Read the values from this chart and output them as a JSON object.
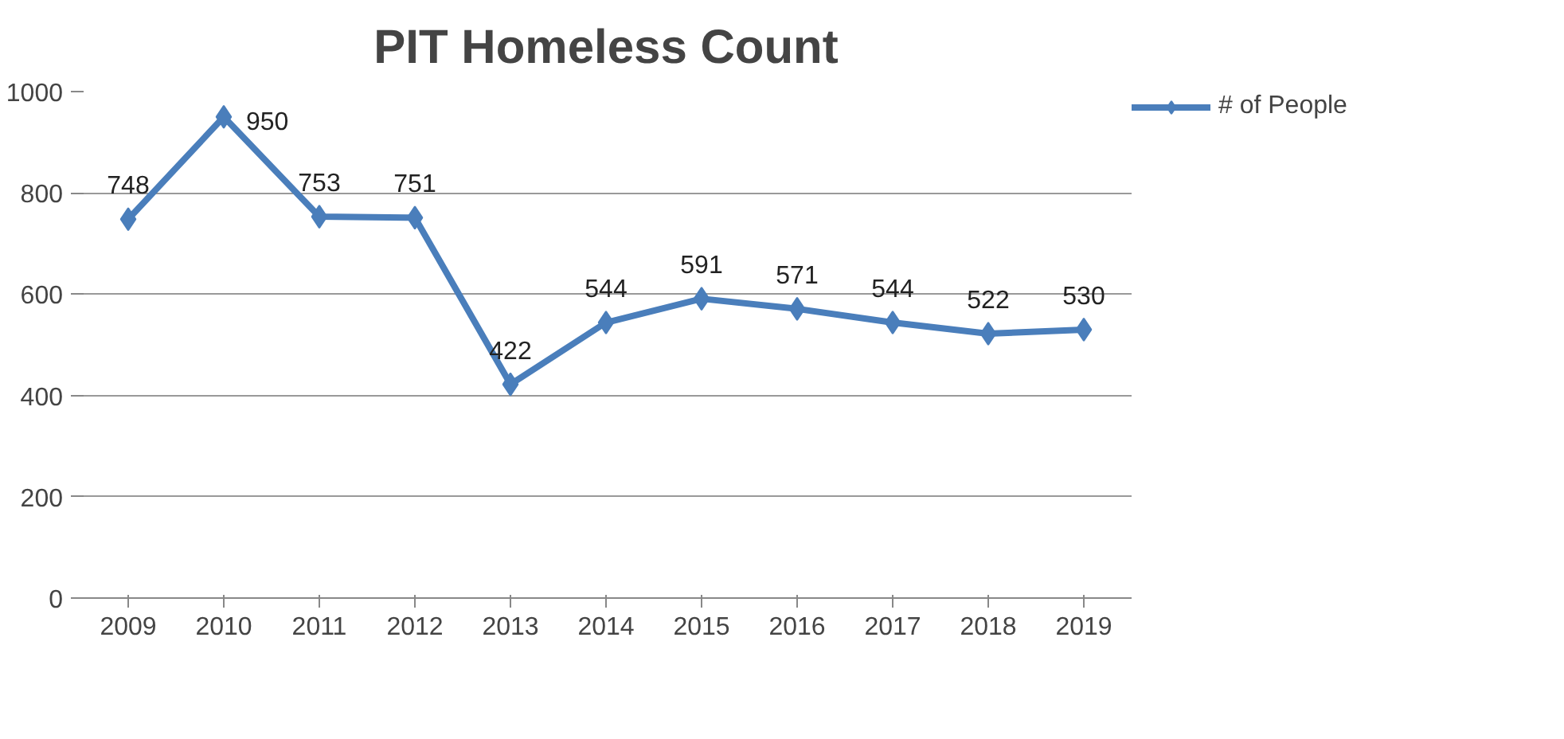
{
  "chart_data": {
    "type": "line",
    "title": "PIT Homeless Count",
    "categories": [
      "2009",
      "2010",
      "2011",
      "2012",
      "2013",
      "2014",
      "2015",
      "2016",
      "2017",
      "2018",
      "2019"
    ],
    "series": [
      {
        "name": "# of People",
        "color": "#4a7ebb",
        "values": [
          748,
          950,
          753,
          751,
          422,
          544,
          591,
          571,
          544,
          522,
          530
        ]
      }
    ],
    "ylim": [
      0,
      1000
    ],
    "yticks": [
      0,
      200,
      400,
      600,
      800,
      1000
    ],
    "grid": "y",
    "legend": "right",
    "marker": "diamond",
    "line_style": "solid",
    "data_labels": true
  }
}
